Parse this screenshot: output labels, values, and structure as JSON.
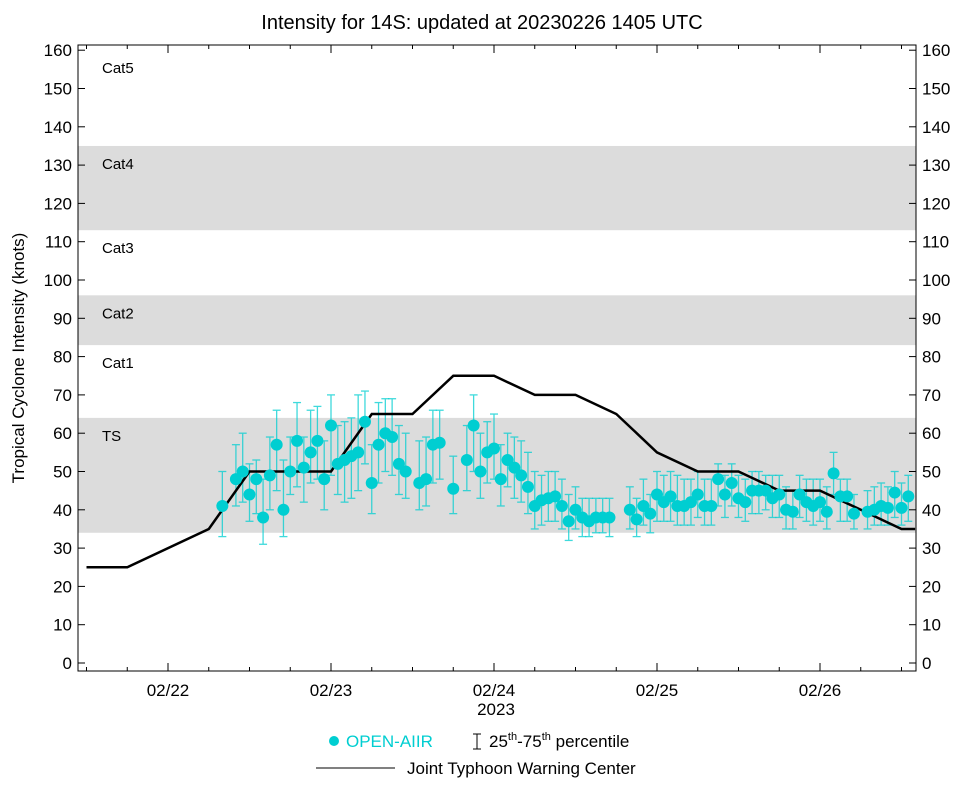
{
  "chart_data": {
    "type": "scatter",
    "title": "Intensity for 14S: updated at 20230226 1405 UTC",
    "ylabel": "Tropical Cyclone Intensity (knots)",
    "xlabel": "2023",
    "ylim": [
      0,
      160
    ],
    "yticks": [
      0,
      10,
      20,
      30,
      40,
      50,
      60,
      70,
      80,
      90,
      100,
      110,
      120,
      130,
      140,
      150,
      160
    ],
    "xlim": [
      "02/21 11",
      "02/26 14"
    ],
    "xticks": [
      "02/22",
      "02/23",
      "02/24",
      "02/25",
      "02/26"
    ],
    "categories": [
      {
        "label": "TS",
        "min": 34,
        "max": 64,
        "shaded": true
      },
      {
        "label": "Cat1",
        "min": 64,
        "max": 83,
        "shaded": false
      },
      {
        "label": "Cat2",
        "min": 83,
        "max": 96,
        "shaded": true
      },
      {
        "label": "Cat3",
        "min": 96,
        "max": 113,
        "shaded": false
      },
      {
        "label": "Cat4",
        "min": 113,
        "max": 135,
        "shaded": true
      },
      {
        "label": "Cat5",
        "min": 135,
        "max": 160,
        "shaded": false
      }
    ],
    "colors": {
      "openaiir": "#00CED1",
      "jtwc": "#000000",
      "band": "#DCDCDC"
    },
    "series": [
      {
        "name": "OPEN-AIIR",
        "kind": "scatter-errorbar",
        "points": [
          [
            "02/22 08",
            41,
            33,
            50
          ],
          [
            "02/22 10",
            48,
            41,
            57
          ],
          [
            "02/22 11",
            50,
            42,
            60
          ],
          [
            "02/22 12",
            44,
            37,
            52
          ],
          [
            "02/22 13",
            48,
            39,
            53
          ],
          [
            "02/22 14",
            38,
            31,
            48
          ],
          [
            "02/22 15",
            49,
            40,
            59
          ],
          [
            "02/22 16",
            57,
            45,
            66
          ],
          [
            "02/22 17",
            40,
            33,
            53
          ],
          [
            "02/22 18",
            50,
            44,
            59
          ],
          [
            "02/22 19",
            58,
            46,
            68
          ],
          [
            "02/22 20",
            51,
            42,
            59
          ],
          [
            "02/22 21",
            55,
            47,
            66
          ],
          [
            "02/22 22",
            58,
            48,
            67
          ],
          [
            "02/22 23",
            48,
            40,
            58
          ],
          [
            "02/23 00",
            62,
            49,
            70
          ],
          [
            "02/23 01",
            52,
            44,
            62
          ],
          [
            "02/23 02",
            53,
            42,
            63
          ],
          [
            "02/23 03",
            54,
            43,
            64
          ],
          [
            "02/23 04",
            55,
            45,
            70
          ],
          [
            "02/23 05",
            63,
            52,
            71
          ],
          [
            "02/23 06",
            47,
            39,
            57
          ],
          [
            "02/23 07",
            57,
            47,
            68
          ],
          [
            "02/23 08",
            60,
            50,
            69
          ],
          [
            "02/23 09",
            59,
            49,
            69
          ],
          [
            "02/23 10",
            52,
            44,
            62
          ],
          [
            "02/23 11",
            50,
            43,
            60
          ],
          [
            "02/23 13",
            47,
            40,
            58
          ],
          [
            "02/23 14",
            48,
            41,
            59
          ],
          [
            "02/23 15",
            57,
            47,
            66
          ],
          [
            "02/23 16",
            57.5,
            48,
            66
          ],
          [
            "02/23 18",
            45.5,
            39,
            54
          ],
          [
            "02/23 20",
            53,
            45,
            62
          ],
          [
            "02/23 21",
            62,
            50,
            70
          ],
          [
            "02/23 22",
            50,
            43,
            60
          ],
          [
            "02/23 23",
            55,
            47,
            63
          ],
          [
            "02/24 00",
            56,
            48,
            65
          ],
          [
            "02/24 01",
            48,
            41,
            57
          ],
          [
            "02/24 02",
            53,
            46,
            60
          ],
          [
            "02/24 03",
            51,
            43,
            59
          ],
          [
            "02/24 04",
            49,
            42,
            58
          ],
          [
            "02/24 05",
            46,
            39,
            55
          ],
          [
            "02/24 06",
            41,
            35,
            50
          ],
          [
            "02/24 07",
            42.5,
            36,
            49
          ],
          [
            "02/24 08",
            43,
            37,
            50
          ],
          [
            "02/24 09",
            43.5,
            37,
            50
          ],
          [
            "02/24 10",
            41,
            35,
            48
          ],
          [
            "02/24 11",
            37,
            32,
            44
          ],
          [
            "02/24 12",
            40,
            35,
            46
          ],
          [
            "02/24 13",
            38,
            33,
            43
          ],
          [
            "02/24 14",
            37,
            33,
            43
          ],
          [
            "02/24 15",
            38,
            34,
            43
          ],
          [
            "02/24 16",
            38,
            34,
            43
          ],
          [
            "02/24 17",
            38,
            33,
            43
          ],
          [
            "02/24 20",
            40,
            35,
            46
          ],
          [
            "02/24 21",
            37.5,
            33,
            43
          ],
          [
            "02/24 22",
            41,
            36,
            48
          ],
          [
            "02/24 23",
            39,
            34,
            44
          ],
          [
            "02/25 00",
            44,
            37,
            50
          ],
          [
            "02/25 01",
            42,
            37,
            49
          ],
          [
            "02/25 02",
            43.5,
            37,
            50
          ],
          [
            "02/25 03",
            41,
            36,
            49
          ],
          [
            "02/25 04",
            41,
            36,
            48
          ],
          [
            "02/25 05",
            42,
            36,
            48
          ],
          [
            "02/25 06",
            44,
            38,
            50
          ],
          [
            "02/25 07",
            41,
            36,
            48
          ],
          [
            "02/25 08",
            41,
            36,
            48
          ],
          [
            "02/25 09",
            48,
            41,
            52
          ],
          [
            "02/25 10",
            44,
            38,
            49
          ],
          [
            "02/25 11",
            47,
            41,
            52
          ],
          [
            "02/25 12",
            43,
            38,
            49
          ],
          [
            "02/25 13",
            42,
            37,
            48
          ],
          [
            "02/25 14",
            45,
            39,
            50
          ],
          [
            "02/25 15",
            45,
            39,
            50
          ],
          [
            "02/25 16",
            45,
            40,
            49
          ],
          [
            "02/25 17",
            43,
            38,
            49
          ],
          [
            "02/25 18",
            44,
            38,
            49
          ],
          [
            "02/25 19",
            40,
            35,
            46
          ],
          [
            "02/25 20",
            39.5,
            35,
            45
          ],
          [
            "02/25 21",
            44,
            38,
            49
          ],
          [
            "02/25 22",
            42,
            37,
            48
          ],
          [
            "02/25 23",
            41,
            36,
            48
          ],
          [
            "02/26 00",
            42,
            37,
            48
          ],
          [
            "02/26 01",
            39.5,
            35,
            46
          ],
          [
            "02/26 02",
            49.5,
            44,
            55
          ],
          [
            "02/26 03",
            43.5,
            37,
            48
          ],
          [
            "02/26 04",
            43.5,
            37,
            48
          ],
          [
            "02/26 05",
            39,
            35,
            44
          ],
          [
            "02/26 07",
            39.5,
            35,
            45
          ],
          [
            "02/26 08",
            40,
            36,
            46
          ],
          [
            "02/26 09",
            41,
            36,
            47
          ],
          [
            "02/26 10",
            40.5,
            36,
            46
          ],
          [
            "02/26 11",
            44.5,
            38,
            50
          ],
          [
            "02/26 12",
            40.5,
            36,
            47
          ],
          [
            "02/26 13",
            43.5,
            37,
            49
          ]
        ]
      },
      {
        "name": "Joint Typhoon Warning Center",
        "kind": "line",
        "points": [
          [
            "02/21 12",
            25
          ],
          [
            "02/21 18",
            25
          ],
          [
            "02/22 06",
            35
          ],
          [
            "02/22 12",
            50
          ],
          [
            "02/23 00",
            50
          ],
          [
            "02/23 06",
            65
          ],
          [
            "02/23 12",
            65
          ],
          [
            "02/23 18",
            75
          ],
          [
            "02/24 00",
            75
          ],
          [
            "02/24 06",
            70
          ],
          [
            "02/24 12",
            70
          ],
          [
            "02/24 18",
            65
          ],
          [
            "02/25 00",
            55
          ],
          [
            "02/25 06",
            50
          ],
          [
            "02/25 12",
            50
          ],
          [
            "02/25 18",
            45
          ],
          [
            "02/26 00",
            45
          ],
          [
            "02/26 06",
            40
          ],
          [
            "02/26 12",
            35
          ],
          [
            "02/26 14",
            35
          ]
        ]
      }
    ],
    "legend": {
      "placement": "bottom",
      "openaiir_label": "OPEN-AIIR",
      "percentile_25": "25",
      "percentile_75": "75",
      "percentile_sup": "th",
      "percentile_text": "percentile",
      "jtwc_label": "Joint Typhoon Warning Center"
    }
  }
}
